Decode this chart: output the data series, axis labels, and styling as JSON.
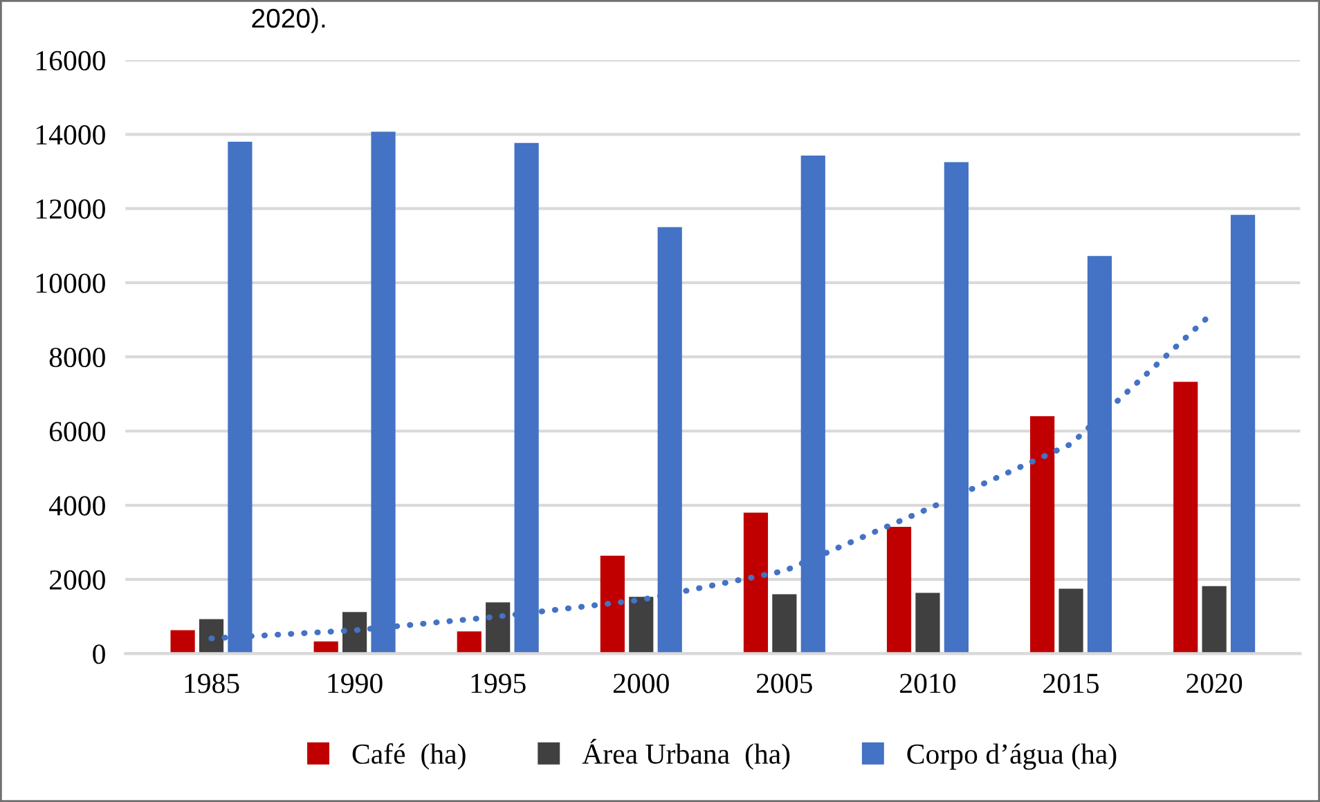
{
  "chart_data": {
    "type": "bar",
    "annotations": [
      "2020)."
    ],
    "categories": [
      "1985",
      "1990",
      "1995",
      "2000",
      "2005",
      "2010",
      "2015",
      "2020"
    ],
    "series": [
      {
        "name": "Café  (ha)",
        "color": "#c00000",
        "values": [
          630,
          330,
          600,
          2640,
          3800,
          3420,
          6400,
          7330
        ]
      },
      {
        "name": "Área Urbana  (ha)",
        "color": "#404040",
        "values": [
          930,
          1120,
          1380,
          1530,
          1600,
          1640,
          1750,
          1820
        ]
      },
      {
        "name": "Corpo d’água (ha)",
        "color": "#4472c4",
        "values": [
          13800,
          14070,
          13770,
          11500,
          13430,
          13250,
          10720,
          11830
        ]
      },
      {
        "type": "line",
        "color": "#4472c4",
        "line_style": "dotted",
        "values": [
          410,
          630,
          1000,
          1450,
          2230,
          3900,
          5650,
          9230
        ]
      }
    ],
    "ylim": [
      0,
      16000
    ],
    "yticks": [
      0,
      2000,
      4000,
      6000,
      8000,
      10000,
      12000,
      14000,
      16000
    ],
    "grid": "y",
    "legend": "bottom"
  }
}
